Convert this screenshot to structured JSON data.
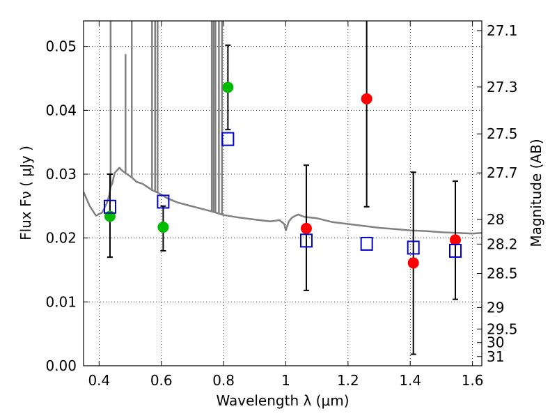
{
  "chart_data": {
    "type": "scatter",
    "xlabel": "Wavelength  λ (μm)",
    "ylabel": "Flux  Fν  ( μJy )",
    "y2label": "Magnitude (AB)",
    "xlim": [
      0.35,
      1.63
    ],
    "ylim": [
      0.0,
      0.054
    ],
    "grid": true,
    "x_ticks": [
      {
        "value": 0.4,
        "label": "0.4"
      },
      {
        "value": 0.6,
        "label": "0.6"
      },
      {
        "value": 0.8,
        "label": "0.8"
      },
      {
        "value": 1.0,
        "label": "1"
      },
      {
        "value": 1.2,
        "label": "1.2"
      },
      {
        "value": 1.4,
        "label": "1.4"
      },
      {
        "value": 1.6,
        "label": "1.6"
      }
    ],
    "y_ticks": [
      {
        "value": 0.0,
        "label": "0.00"
      },
      {
        "value": 0.01,
        "label": "0.01"
      },
      {
        "value": 0.02,
        "label": "0.02"
      },
      {
        "value": 0.03,
        "label": "0.03"
      },
      {
        "value": 0.04,
        "label": "0.04"
      },
      {
        "value": 0.05,
        "label": "0.05"
      }
    ],
    "y2_ticks": [
      {
        "mag": 27.1,
        "label": "27.1"
      },
      {
        "mag": 27.3,
        "label": "27.3"
      },
      {
        "mag": 27.5,
        "label": "27.5"
      },
      {
        "mag": 27.7,
        "label": "27.7"
      },
      {
        "mag": 28.0,
        "label": "28"
      },
      {
        "mag": 28.2,
        "label": "28.2"
      },
      {
        "mag": 28.5,
        "label": "28.5"
      },
      {
        "mag": 29.0,
        "label": "29"
      },
      {
        "mag": 29.5,
        "label": "29.5"
      },
      {
        "mag": 30.0,
        "label": "30"
      },
      {
        "mag": 31.0,
        "label": "31"
      }
    ],
    "series": [
      {
        "color": "#00bb00",
        "marker": "circle",
        "points": [
          {
            "x": 0.435,
            "y": 0.0234,
            "err_lo": 0.017,
            "err_hi": 0.03
          },
          {
            "x": 0.606,
            "y": 0.0217,
            "err_lo": 0.018,
            "err_hi": 0.025
          },
          {
            "x": 0.814,
            "y": 0.0436,
            "err_lo": 0.037,
            "err_hi": 0.0502
          }
        ]
      },
      {
        "color": "#ff0000",
        "marker": "circle",
        "points": [
          {
            "x": 1.066,
            "y": 0.0215,
            "err_lo": 0.0118,
            "err_hi": 0.0314
          },
          {
            "x": 1.26,
            "y": 0.0418,
            "err_lo": 0.0249,
            "err_hi": 0.054
          },
          {
            "x": 1.41,
            "y": 0.0161,
            "err_lo": 0.0018,
            "err_hi": 0.0303
          },
          {
            "x": 1.545,
            "y": 0.0197,
            "err_lo": 0.0104,
            "err_hi": 0.0289
          }
        ]
      },
      {
        "color": "#0000cc",
        "marker": "open-square",
        "points": [
          {
            "x": 0.435,
            "y": 0.0249
          },
          {
            "x": 0.606,
            "y": 0.0257
          },
          {
            "x": 0.814,
            "y": 0.0355
          },
          {
            "x": 1.066,
            "y": 0.0196
          },
          {
            "x": 1.26,
            "y": 0.0191
          },
          {
            "x": 1.41,
            "y": 0.0185
          },
          {
            "x": 1.545,
            "y": 0.018
          }
        ]
      }
    ],
    "spectrum": {
      "color": "#808080",
      "x": [
        0.35,
        0.37,
        0.39,
        0.41,
        0.425,
        0.433,
        0.437,
        0.442,
        0.45,
        0.465,
        0.475,
        0.49,
        0.505,
        0.52,
        0.54,
        0.555,
        0.57,
        0.585,
        0.6,
        0.62,
        0.65,
        0.68,
        0.72,
        0.76,
        0.8,
        0.85,
        0.9,
        0.95,
        0.98,
        0.995,
        1.0,
        1.01,
        1.02,
        1.04,
        1.06,
        1.08,
        1.1,
        1.15,
        1.2,
        1.25,
        1.3,
        1.35,
        1.4,
        1.45,
        1.5,
        1.55,
        1.6,
        1.63
      ],
      "y": [
        0.0272,
        0.025,
        0.0235,
        0.024,
        0.0255,
        0.0268,
        0.028,
        0.0285,
        0.0302,
        0.031,
        0.0305,
        0.03,
        0.0295,
        0.0288,
        0.0285,
        0.028,
        0.0275,
        0.0272,
        0.0268,
        0.0262,
        0.0256,
        0.0252,
        0.0247,
        0.0242,
        0.0236,
        0.0232,
        0.0229,
        0.0226,
        0.0228,
        0.0222,
        0.0212,
        0.0226,
        0.0232,
        0.0237,
        0.0233,
        0.0232,
        0.0231,
        0.0225,
        0.0222,
        0.0219,
        0.0216,
        0.0214,
        0.0212,
        0.0211,
        0.0209,
        0.0208,
        0.0207,
        0.0208
      ],
      "emission_lines": [
        {
          "x": 0.437,
          "peak": 0.054
        },
        {
          "x": 0.485,
          "peak": 0.0488
        },
        {
          "x": 0.505,
          "peak": 0.054
        },
        {
          "x": 0.57,
          "peak": 0.054
        },
        {
          "x": 0.58,
          "peak": 0.054
        },
        {
          "x": 0.588,
          "peak": 0.054
        },
        {
          "x": 0.762,
          "peak": 0.054
        },
        {
          "x": 0.768,
          "peak": 0.054
        },
        {
          "x": 0.774,
          "peak": 0.054
        },
        {
          "x": 0.785,
          "peak": 0.054
        },
        {
          "x": 0.795,
          "peak": 0.054
        }
      ]
    }
  }
}
